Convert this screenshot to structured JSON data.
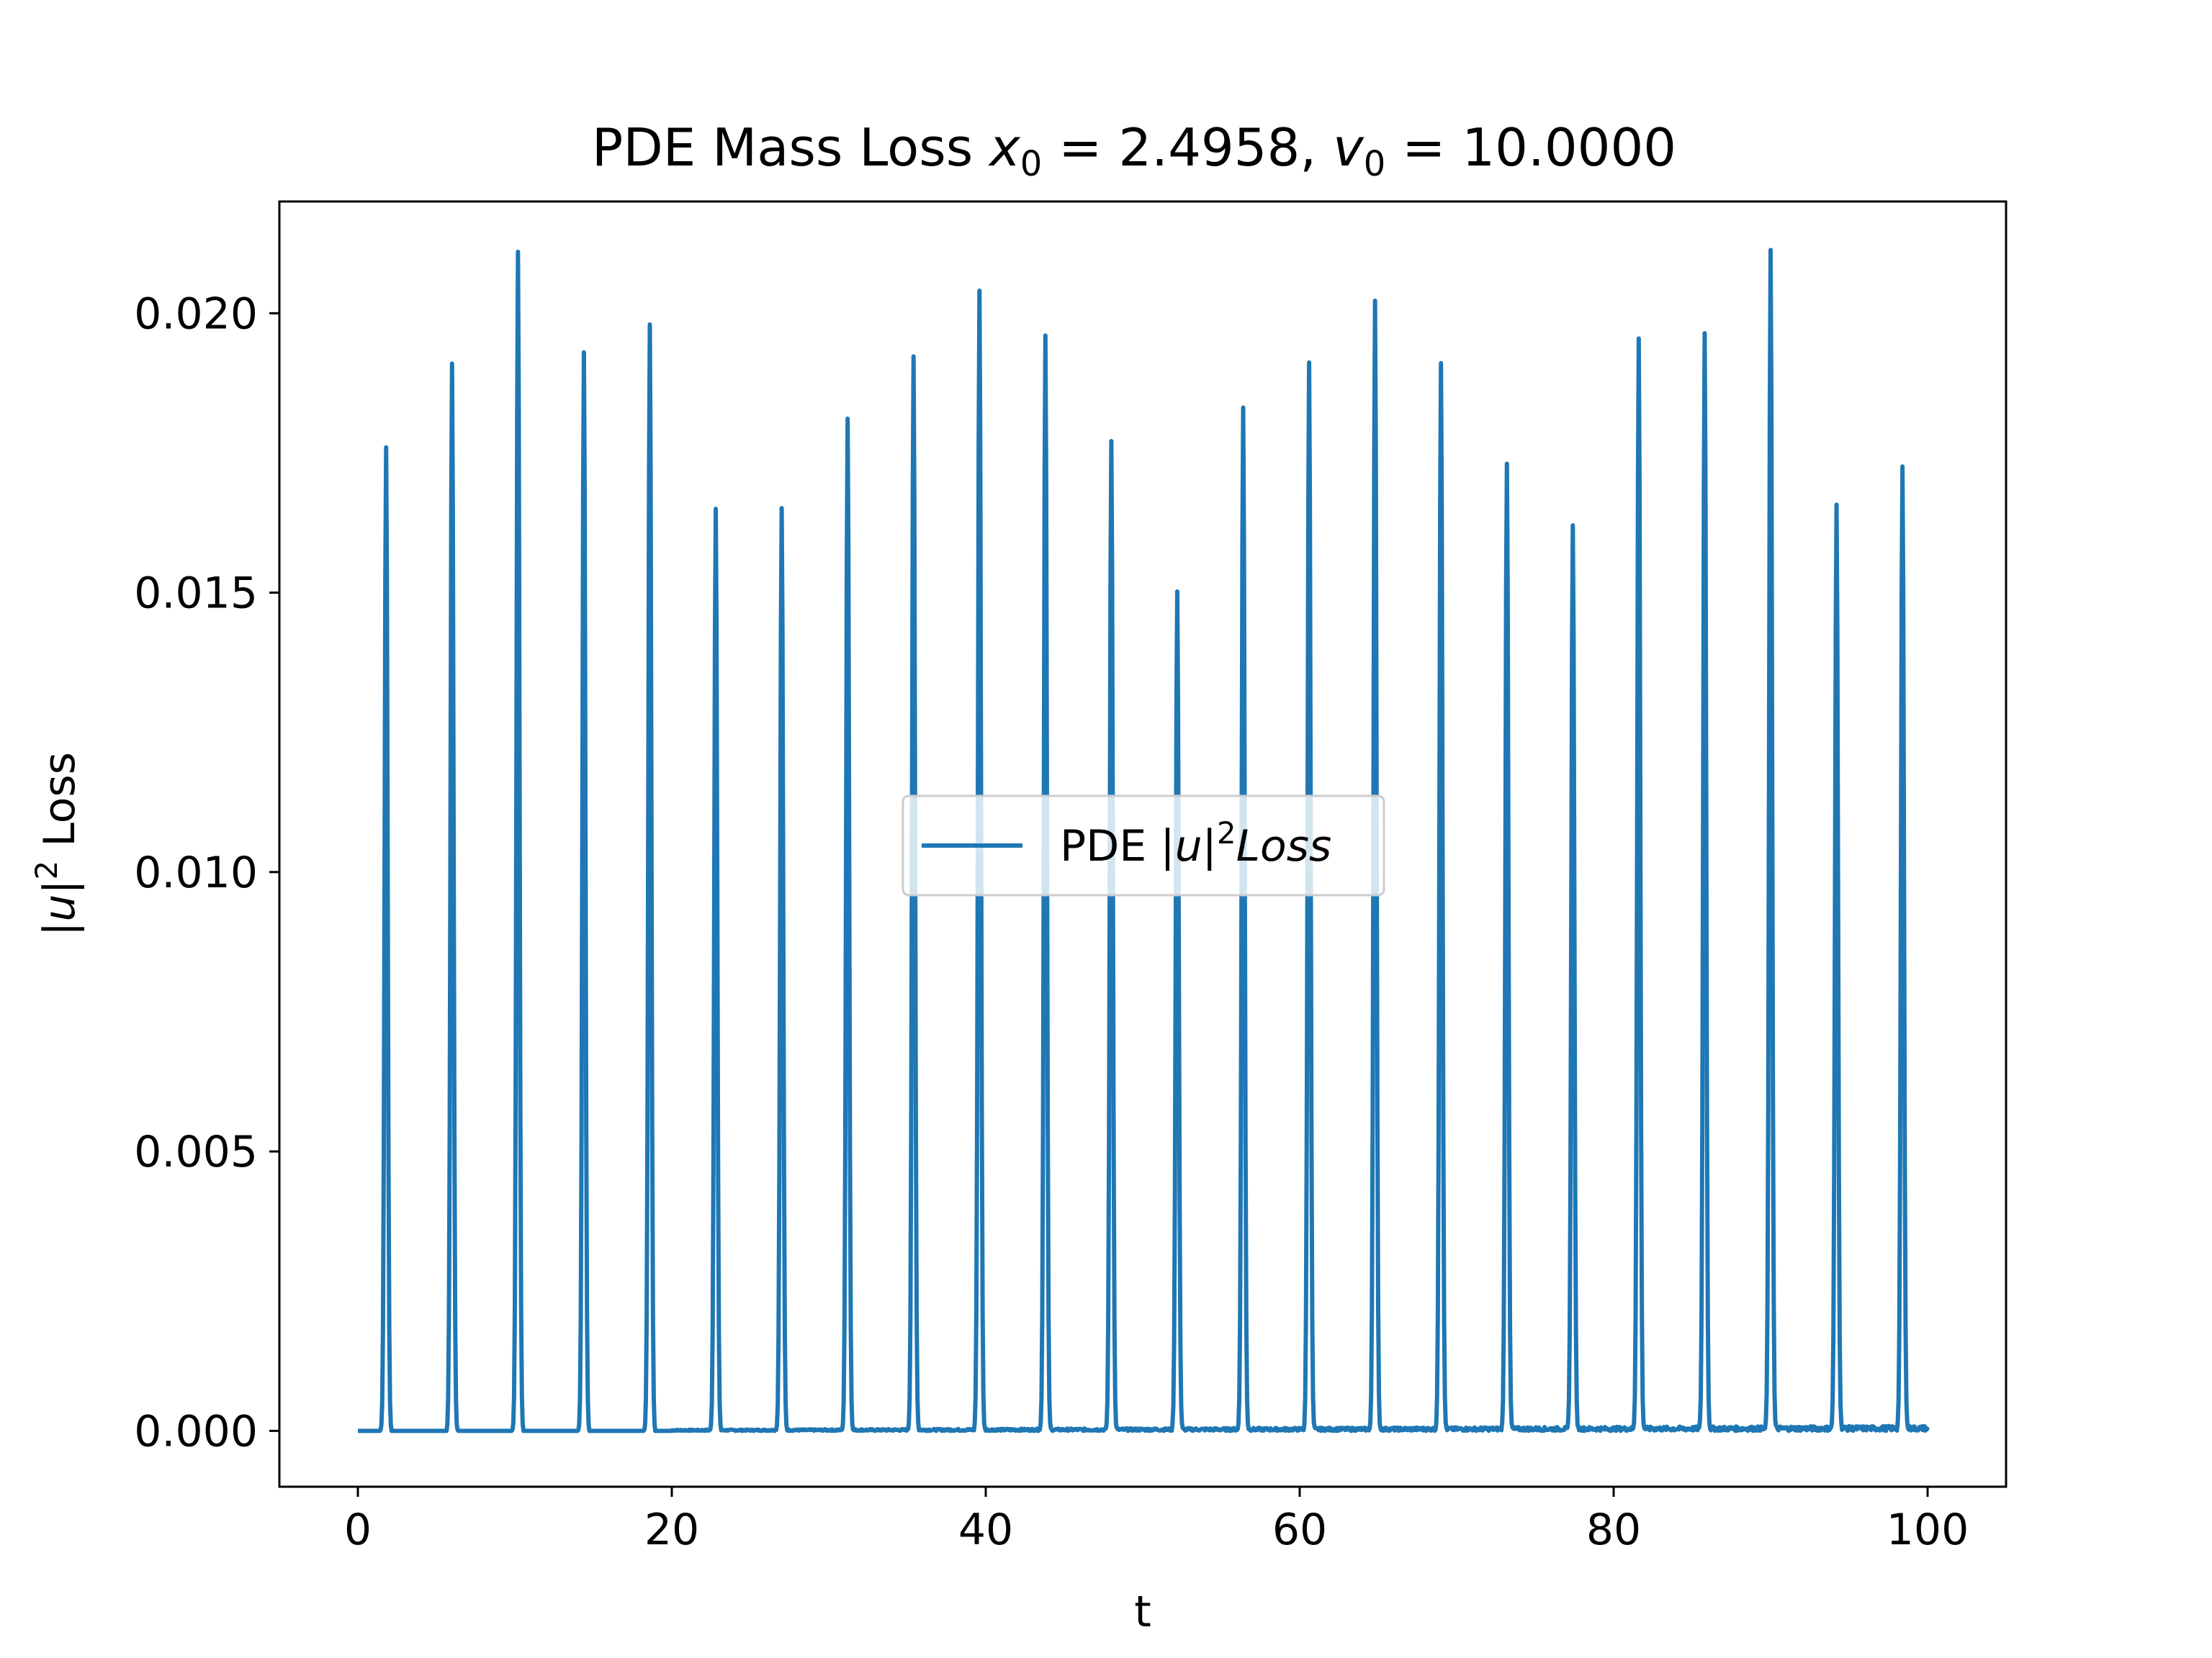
{
  "chart_data": {
    "type": "line",
    "title_parts": {
      "prefix": "PDE Mass Loss ",
      "x_sym": "x",
      "sub0": "0",
      "x_val": " = 2.4958, ",
      "v_sym": "v",
      "v_val": " = 10.0000"
    },
    "xlabel": "t",
    "ylabel_parts": {
      "pre": "|",
      "u": "u",
      "post": "|",
      "sup": "2",
      "rest": " Loss"
    },
    "legend_parts": {
      "pre": "PDE |",
      "u": "u",
      "post": "|",
      "sup": "2",
      "italic": "Loss"
    },
    "legend_placement": "center",
    "grid": false,
    "xlim": [
      -5,
      105
    ],
    "ylim": [
      -0.001,
      0.022
    ],
    "x_ticks": [
      0,
      20,
      40,
      60,
      80,
      100
    ],
    "x_tick_labels": [
      "0",
      "20",
      "40",
      "60",
      "80",
      "100"
    ],
    "y_ticks": [
      0.0,
      0.005,
      0.01,
      0.015,
      0.02
    ],
    "y_tick_labels": [
      "0.000",
      "0.005",
      "0.010",
      "0.015",
      "0.020"
    ],
    "color": "#1f77b4",
    "series": [
      {
        "name": "PDE |u|^2 Loss",
        "t_range": [
          0,
          100
        ],
        "baseline": 0.0,
        "peaks": [
          {
            "t": 1.8,
            "value": 0.0176
          },
          {
            "t": 6.0,
            "value": 0.0191
          },
          {
            "t": 10.2,
            "value": 0.0211
          },
          {
            "t": 14.4,
            "value": 0.0193
          },
          {
            "t": 18.6,
            "value": 0.0198
          },
          {
            "t": 22.8,
            "value": 0.0165
          },
          {
            "t": 27.0,
            "value": 0.0165
          },
          {
            "t": 31.2,
            "value": 0.0181
          },
          {
            "t": 35.4,
            "value": 0.0192
          },
          {
            "t": 39.6,
            "value": 0.0204
          },
          {
            "t": 43.8,
            "value": 0.0196
          },
          {
            "t": 48.0,
            "value": 0.0177
          },
          {
            "t": 52.2,
            "value": 0.015
          },
          {
            "t": 56.4,
            "value": 0.0183
          },
          {
            "t": 60.6,
            "value": 0.0191
          },
          {
            "t": 64.8,
            "value": 0.0202
          },
          {
            "t": 69.0,
            "value": 0.0191
          },
          {
            "t": 73.2,
            "value": 0.0173
          },
          {
            "t": 77.4,
            "value": 0.0162
          },
          {
            "t": 81.6,
            "value": 0.0195
          },
          {
            "t": 85.8,
            "value": 0.0196
          },
          {
            "t": 90.0,
            "value": 0.0211
          },
          {
            "t": 94.2,
            "value": 0.0165
          },
          {
            "t": 98.4,
            "value": 0.0172
          }
        ]
      }
    ]
  }
}
